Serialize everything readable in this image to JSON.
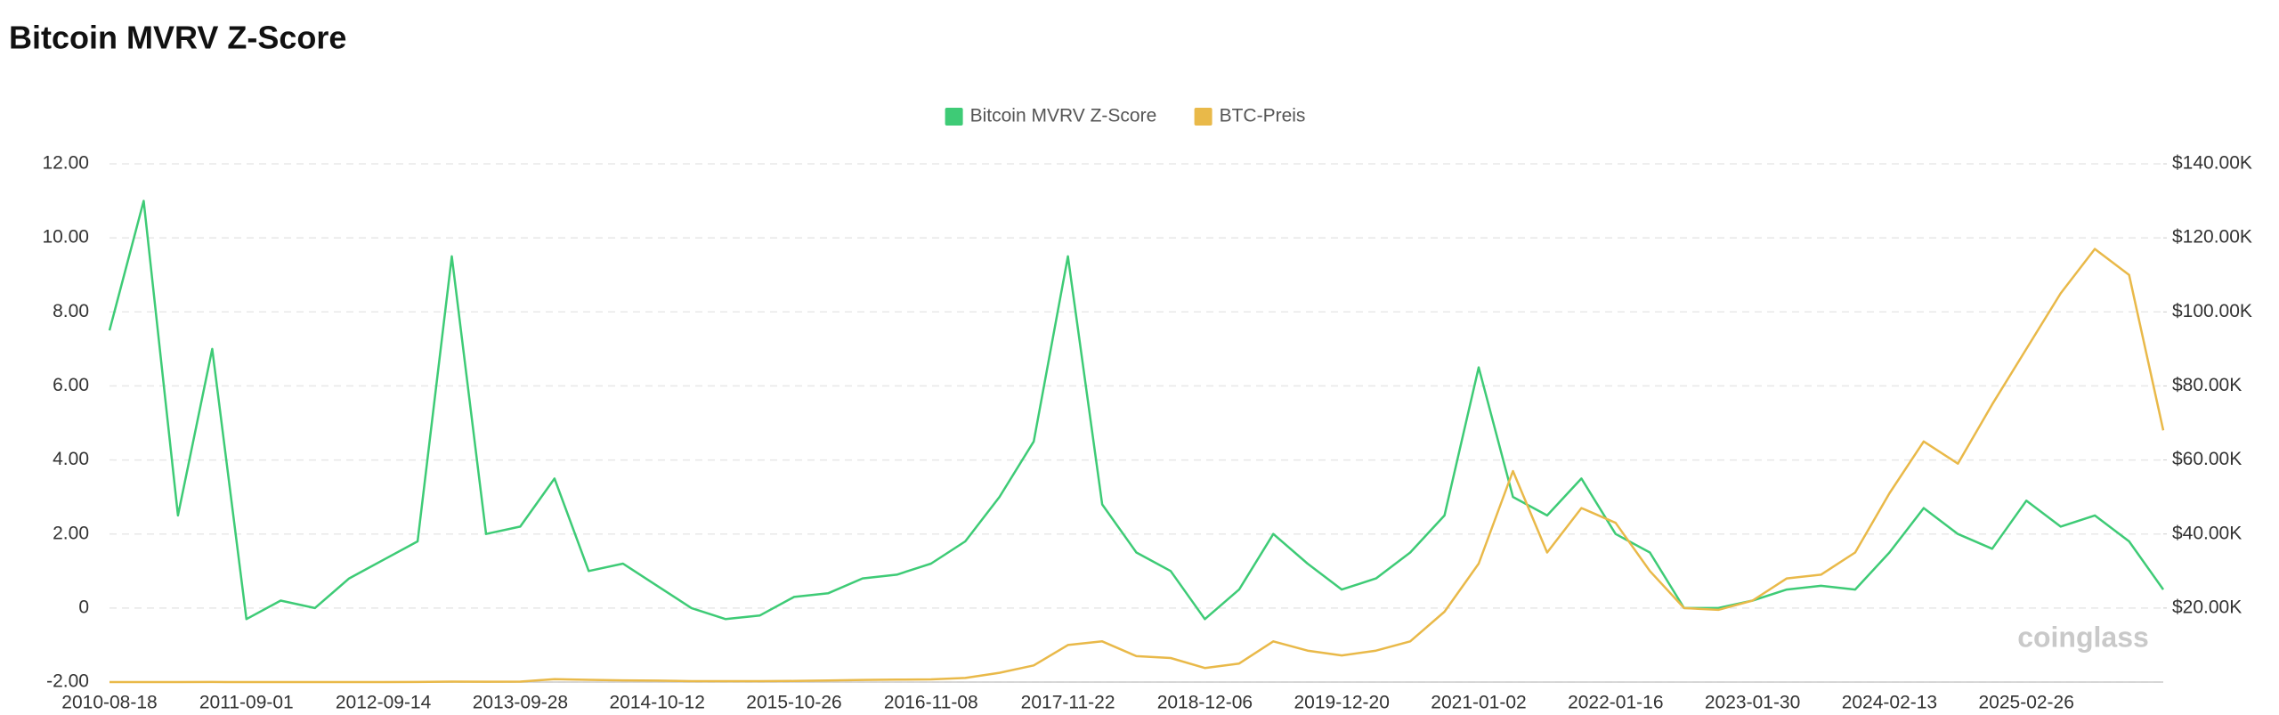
{
  "chart_data": {
    "type": "line",
    "title": "Bitcoin MVRV Z-Score",
    "watermark": "coinglass",
    "categories": [
      "2010-08-18",
      null,
      null,
      null,
      "2011-09-01",
      null,
      null,
      null,
      "2012-09-14",
      null,
      null,
      null,
      "2013-09-28",
      null,
      null,
      null,
      "2014-10-12",
      null,
      null,
      null,
      "2015-10-26",
      null,
      null,
      null,
      "2016-11-08",
      null,
      null,
      null,
      "2017-11-22",
      null,
      null,
      null,
      "2018-12-06",
      null,
      null,
      null,
      "2019-12-20",
      null,
      null,
      null,
      "2021-01-02",
      null,
      null,
      null,
      "2022-01-16",
      null,
      null,
      null,
      "2023-01-30",
      null,
      null,
      null,
      "2024-02-13",
      null,
      null,
      null,
      "2025-02-26",
      null,
      null,
      null,
      null
    ],
    "series": [
      {
        "name": "Bitcoin MVRV Z-Score",
        "color": "#3ecb76",
        "axis": "y",
        "values": [
          7.5,
          11.0,
          2.5,
          7.0,
          -0.3,
          0.2,
          0.0,
          0.8,
          1.3,
          1.8,
          9.5,
          2.0,
          2.2,
          3.5,
          1.0,
          1.2,
          0.6,
          0.0,
          -0.3,
          -0.2,
          0.3,
          0.4,
          0.8,
          0.9,
          1.2,
          1.8,
          3.0,
          4.5,
          9.5,
          2.8,
          1.5,
          1.0,
          -0.3,
          0.5,
          2.0,
          1.2,
          0.5,
          0.8,
          1.5,
          2.5,
          6.5,
          3.0,
          2.5,
          3.5,
          2.0,
          1.5,
          0.0,
          0.0,
          0.2,
          0.5,
          0.6,
          0.5,
          1.5,
          2.7,
          2.0,
          1.6,
          2.9,
          2.2,
          2.5,
          1.8,
          0.5
        ]
      },
      {
        "name": "BTC-Preis",
        "color": "#e9b949",
        "axis": "y2",
        "values": [
          0.07,
          0.3,
          0.9,
          15,
          5,
          3,
          5,
          5,
          11,
          13,
          110,
          100,
          130,
          800,
          600,
          450,
          380,
          250,
          230,
          250,
          280,
          420,
          580,
          650,
          710,
          1100,
          2500,
          4500,
          10000,
          11000,
          7000,
          6500,
          3800,
          5000,
          11000,
          8500,
          7200,
          8500,
          11000,
          19000,
          32000,
          57000,
          35000,
          47000,
          43000,
          30000,
          20000,
          19500,
          22000,
          28000,
          29000,
          35000,
          51000,
          65000,
          59000,
          75000,
          90000,
          105000,
          117000,
          110000,
          68000
        ]
      }
    ],
    "ylim": [
      -2,
      12
    ],
    "yticks": [
      {
        "value": -2,
        "label": "-2.00"
      },
      0,
      {
        "value": 2,
        "label": "2.00"
      },
      {
        "value": 4,
        "label": "4.00"
      },
      {
        "value": 6,
        "label": "6.00"
      },
      {
        "value": 8,
        "label": "8.00"
      },
      {
        "value": 10,
        "label": "10.00"
      },
      {
        "value": 12,
        "label": "12.00"
      }
    ],
    "y2lim": [
      0,
      140000
    ],
    "y2ticks": [
      {
        "value": 20000,
        "label": "$20.00K"
      },
      {
        "value": 40000,
        "label": "$40.00K"
      },
      {
        "value": 60000,
        "label": "$60.00K"
      },
      {
        "value": 80000,
        "label": "$80.00K"
      },
      {
        "value": 100000,
        "label": "$100.00K"
      },
      {
        "value": 120000,
        "label": "$120.00K"
      },
      {
        "value": 140000,
        "label": "$140.00K"
      }
    ],
    "grid": true,
    "legend": "top"
  }
}
